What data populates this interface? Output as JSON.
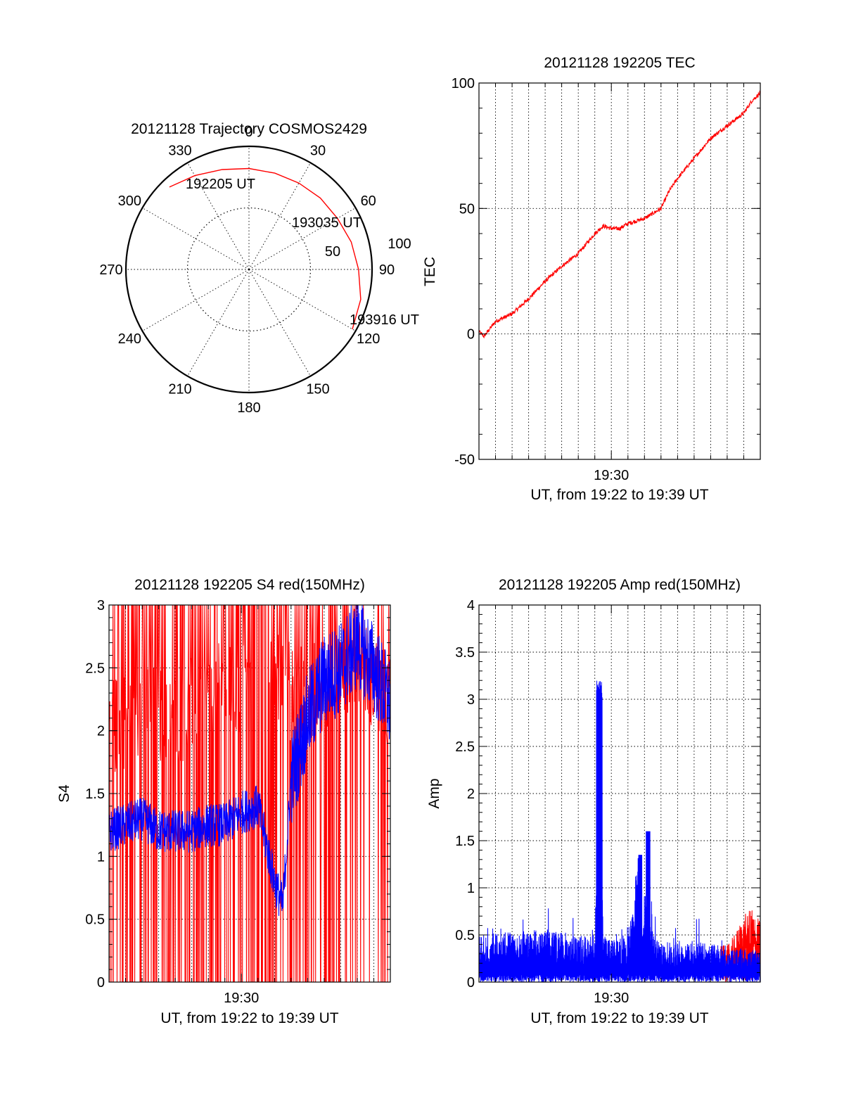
{
  "chart_data": [
    {
      "id": "trajectory",
      "type": "polar",
      "title": "20121128 Trajectory COSMOS2429",
      "azimuth_labels": [
        "0",
        "30",
        "60",
        "90",
        "120",
        "150",
        "180",
        "210",
        "240",
        "270",
        "300",
        "330"
      ],
      "radial_labels": [
        "50",
        "100"
      ],
      "r_max": 100,
      "colors": {
        "track": "#ff0000"
      },
      "track": {
        "az_deg": [
          316,
          330,
          345,
          0,
          15,
          30,
          45,
          60,
          75,
          90,
          105,
          120
        ],
        "r": [
          93,
          88,
          84,
          82,
          81,
          81,
          82,
          83,
          86,
          89,
          94,
          97
        ]
      },
      "annotations": [
        {
          "text": "192205 UT",
          "az": 322,
          "r": 93
        },
        {
          "text": "193035 UT",
          "az": 60,
          "r": 70
        },
        {
          "text": "193916 UT",
          "az": 108,
          "r": 100
        }
      ]
    },
    {
      "id": "tec",
      "type": "line",
      "title": "20121128 192205 TEC",
      "xlabel": "UT, from 19:22 to 19:39 UT",
      "ylabel": "TEC",
      "x_tick_labels": [
        "19:30"
      ],
      "x_ticks_min": [
        8
      ],
      "xlim_min": [
        0,
        17
      ],
      "ylim": [
        -50,
        100
      ],
      "y_ticks": [
        -50,
        0,
        50,
        100
      ],
      "colors": {
        "line": "#ff0000"
      },
      "series": [
        {
          "x_min": [
            0,
            0.3,
            1,
            2,
            3,
            4,
            5,
            6,
            7,
            7.5,
            8,
            8.5,
            9,
            9.5,
            10,
            10.5,
            11,
            11.5,
            12,
            12.5,
            13,
            13.5,
            14,
            15,
            16,
            16.5,
            17
          ],
          "values": [
            1,
            -1,
            5,
            8,
            14,
            21,
            27,
            32,
            40,
            43,
            42,
            42,
            44,
            45,
            46,
            48,
            50,
            57,
            62,
            66,
            70,
            74,
            78,
            83,
            88,
            93,
            96
          ]
        }
      ]
    },
    {
      "id": "s4",
      "type": "line",
      "title": "20121128 192205 S4 red(150MHz)",
      "xlabel": "UT, from 19:22 to 19:39 UT",
      "ylabel": "S4",
      "x_tick_labels": [
        "19:30"
      ],
      "x_ticks_min": [
        8
      ],
      "xlim_min": [
        0,
        17
      ],
      "ylim": [
        0,
        3
      ],
      "y_ticks": [
        "0",
        "0.5",
        "1",
        "1.5",
        "2",
        "2.5",
        "3"
      ],
      "colors": {
        "red": "#ff0000",
        "blue": "#0000ff"
      },
      "series": [
        {
          "color": "red",
          "x_min": [
            0,
            2,
            4,
            6,
            8,
            9.5,
            11,
            13,
            14,
            15,
            16,
            17
          ],
          "values": [
            2.0,
            2.2,
            2.1,
            2.3,
            2.3,
            2.6,
            2.3,
            2.4,
            2.5,
            2.6,
            2.4,
            2.2
          ]
        },
        {
          "color": "blue",
          "x_min": [
            0,
            1,
            2,
            3,
            4,
            5,
            6,
            7,
            8,
            9,
            9.5,
            10,
            10.5,
            11,
            12,
            13,
            14,
            15,
            16,
            17
          ],
          "values": [
            1.2,
            1.25,
            1.3,
            1.2,
            1.2,
            1.2,
            1.25,
            1.25,
            1.35,
            1.4,
            1.1,
            0.8,
            0.6,
            1.6,
            2.1,
            2.4,
            2.5,
            2.7,
            2.5,
            2.2
          ]
        }
      ]
    },
    {
      "id": "amp",
      "type": "line",
      "title": "20121128 192205 Amp red(150MHz)",
      "xlabel": "UT, from 19:22 to 19:39 UT",
      "ylabel": "Amp",
      "x_tick_labels": [
        "19:30"
      ],
      "x_ticks_min": [
        8
      ],
      "xlim_min": [
        0,
        17
      ],
      "ylim": [
        0,
        4
      ],
      "y_ticks": [
        "0",
        "0.5",
        "1",
        "1.5",
        "2",
        "2.5",
        "3",
        "3.5",
        "4"
      ],
      "colors": {
        "red": "#ff0000",
        "blue": "#0000ff"
      },
      "series": [
        {
          "color": "blue",
          "x_min": [
            0,
            2,
            4,
            6,
            7,
            7.3,
            7.5,
            8,
            9,
            9.7,
            9.9,
            10.2,
            10.5,
            11,
            13,
            15,
            17
          ],
          "values": [
            0.45,
            0.5,
            0.5,
            0.45,
            0.45,
            3.15,
            0.45,
            0.4,
            0.45,
            1.35,
            0.45,
            1.7,
            0.45,
            0.4,
            0.4,
            0.35,
            0.3
          ]
        },
        {
          "color": "red",
          "x_min": [
            15,
            15.5,
            16,
            16.5,
            17
          ],
          "values": [
            0.3,
            0.4,
            0.55,
            0.6,
            0.5
          ]
        }
      ]
    }
  ]
}
